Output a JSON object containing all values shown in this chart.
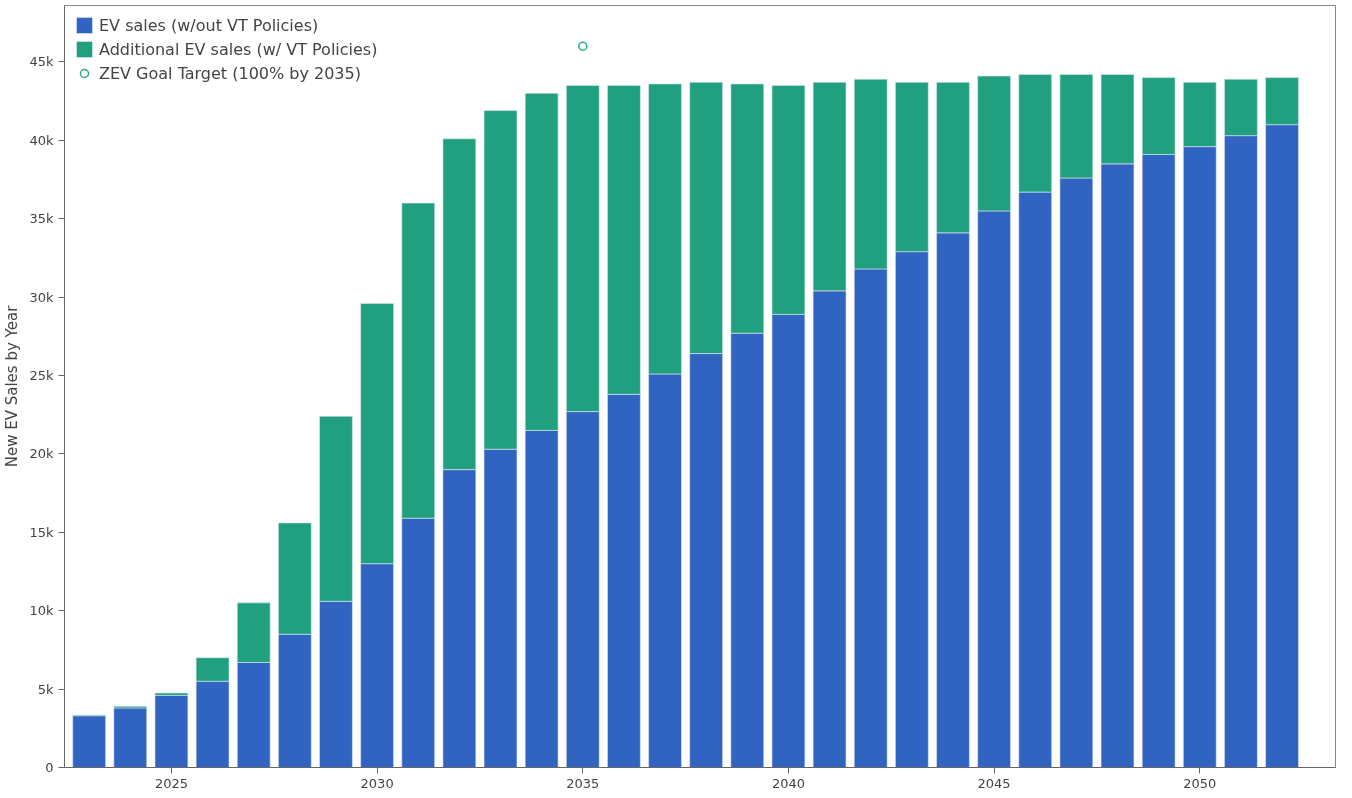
{
  "chart_data": {
    "type": "bar",
    "stacked": true,
    "ylabel": "New EV Sales by Year",
    "legend": "top left",
    "grid": false,
    "x": [
      2023,
      2024,
      2025,
      2026,
      2027,
      2028,
      2029,
      2030,
      2031,
      2032,
      2033,
      2034,
      2035,
      2036,
      2037,
      2038,
      2039,
      2040,
      2041,
      2042,
      2043,
      2044,
      2045,
      2046,
      2047,
      2048,
      2049,
      2050,
      2051,
      2052
    ],
    "xlim": [
      2022.4,
      2053.3
    ],
    "xticks": [
      2025,
      2030,
      2035,
      2040,
      2045,
      2050
    ],
    "ylim": [
      0,
      48600
    ],
    "yticks": [
      0,
      {
        "value": 5000,
        "label": "5k"
      },
      {
        "value": 10000,
        "label": "10k"
      },
      {
        "value": 15000,
        "label": "15k"
      },
      {
        "value": 20000,
        "label": "20k"
      },
      {
        "value": 25000,
        "label": "25k"
      },
      {
        "value": 30000,
        "label": "30k"
      },
      {
        "value": 35000,
        "label": "35k"
      },
      {
        "value": 40000,
        "label": "40k"
      },
      {
        "value": 45000,
        "label": "45k"
      }
    ],
    "series": [
      {
        "name": "EV sales (w/out VT Policies)",
        "color": "#3163c0",
        "values": [
          3300,
          3800,
          4600,
          5500,
          6700,
          8500,
          10600,
          13000,
          15900,
          19000,
          20300,
          21500,
          22700,
          23800,
          25100,
          26400,
          27700,
          28900,
          30400,
          31800,
          32900,
          34100,
          35500,
          36700,
          37600,
          38500,
          39100,
          39600,
          40300,
          41000
        ]
      },
      {
        "name": "Additional EV sales (w/ VT Policies)",
        "color": "#20a07e",
        "values": [
          50,
          100,
          150,
          1500,
          3800,
          7100,
          11800,
          16600,
          20100,
          21100,
          21600,
          21500,
          20800,
          19700,
          18500,
          17300,
          15900,
          14600,
          13300,
          12100,
          10800,
          9600,
          8600,
          7500,
          6600,
          5700,
          4900,
          4100,
          3600,
          3000
        ]
      },
      {
        "name": "ZEV Goal Target (100% by 2035)",
        "type": "scatter",
        "marker": "circle",
        "color": "#2aa88a",
        "x": [
          2035
        ],
        "values": [
          46000
        ]
      }
    ]
  }
}
